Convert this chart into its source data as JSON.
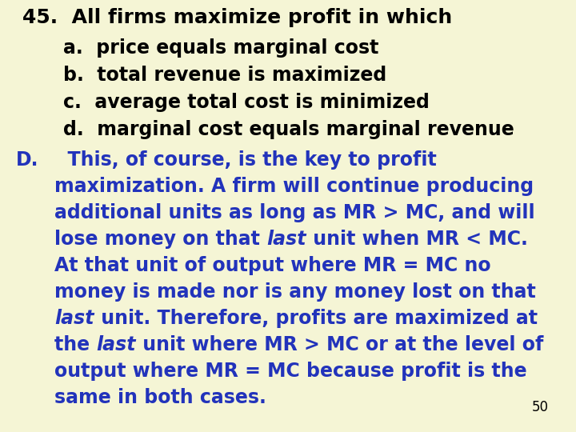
{
  "background_color": "#f5f5d5",
  "title_text": "45.  All firms maximize profit in which",
  "options": [
    "    a.  price equals marginal cost",
    "    b.  total revenue is maximized",
    "    c.  average total cost is minimized",
    "    d.  marginal cost equals marginal revenue"
  ],
  "answer_label": "D.",
  "answer_lines": [
    [
      {
        "text": "  This, of course, is the key to profit",
        "italic": false
      }
    ],
    [
      {
        "text": "maximization. A firm will continue producing",
        "italic": false
      }
    ],
    [
      {
        "text": "additional units as long as MR > MC, and will",
        "italic": false
      }
    ],
    [
      {
        "text": "lose money on that ",
        "italic": false
      },
      {
        "text": "last",
        "italic": true
      },
      {
        "text": " unit when MR < MC.",
        "italic": false
      }
    ],
    [
      {
        "text": "At that unit of output where MR = MC no",
        "italic": false
      }
    ],
    [
      {
        "text": "money is made nor is any money lost on that",
        "italic": false
      }
    ],
    [
      {
        "text": "last",
        "italic": true
      },
      {
        "text": " unit. Therefore, profits are maximized at",
        "italic": false
      }
    ],
    [
      {
        "text": "the ",
        "italic": false
      },
      {
        "text": "last",
        "italic": true
      },
      {
        "text": " unit where MR > MC or at the level of",
        "italic": false
      }
    ],
    [
      {
        "text": "output where MR = MC because profit is the",
        "italic": false
      }
    ],
    [
      {
        "text": "same in both cases.",
        "italic": false
      }
    ]
  ],
  "page_number": "50",
  "title_color": "#000000",
  "options_color": "#000000",
  "answer_color": "#2233bb",
  "title_fontsize": 18,
  "options_fontsize": 17,
  "answer_fontsize": 17,
  "page_number_fontsize": 12
}
